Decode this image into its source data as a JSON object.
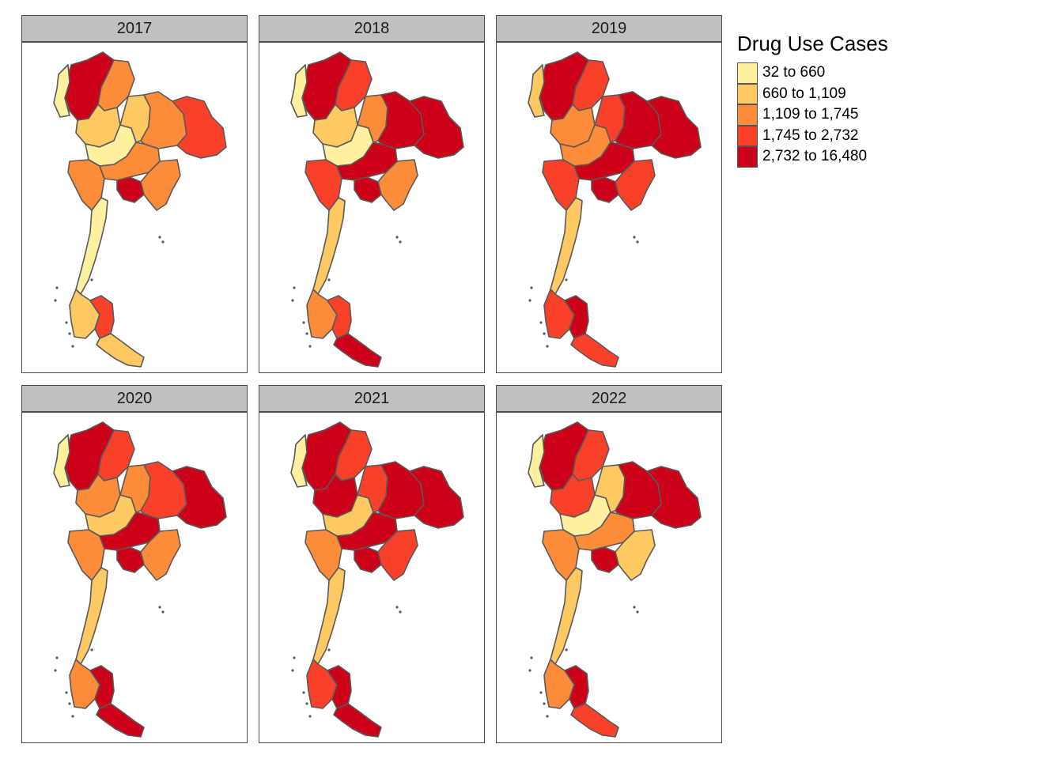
{
  "legend": {
    "title": "Drug Use Cases",
    "classes": [
      {
        "label": "32 to 660",
        "color": "#fff0a0"
      },
      {
        "label": "660 to 1,109",
        "color": "#fec863"
      },
      {
        "label": "1,109 to 1,745",
        "color": "#fd8c3a"
      },
      {
        "label": "1,745 to 2,732",
        "color": "#f9412a"
      },
      {
        "label": "2,732 to 16,480",
        "color": "#cc0019"
      }
    ]
  },
  "boundary_color": "#595959",
  "icons": {
    "map": "thailand-province-choropleth"
  },
  "panels": [
    {
      "year": "2017",
      "regions": {
        "north_west": 4,
        "north_west_edge": 0,
        "north_east_n": 2,
        "north_central": 1,
        "central_north": 0,
        "west": 2,
        "isan_west": 1,
        "isan_central": 2,
        "isan_east": 3,
        "central": 2,
        "bangkok": 4,
        "east": 2,
        "isthmus": 0,
        "south_upper": 1,
        "south_mid": 3,
        "south_lower": 1
      }
    },
    {
      "year": "2018",
      "regions": {
        "north_west": 4,
        "north_west_edge": 0,
        "north_east_n": 3,
        "north_central": 1,
        "central_north": 0,
        "west": 3,
        "isan_west": 2,
        "isan_central": 4,
        "isan_east": 4,
        "central": 4,
        "bangkok": 4,
        "east": 2,
        "isthmus": 1,
        "south_upper": 2,
        "south_mid": 3,
        "south_lower": 4
      }
    },
    {
      "year": "2019",
      "regions": {
        "north_west": 4,
        "north_west_edge": 1,
        "north_east_n": 3,
        "north_central": 2,
        "central_north": 2,
        "west": 3,
        "isan_west": 3,
        "isan_central": 4,
        "isan_east": 4,
        "central": 4,
        "bangkok": 4,
        "east": 3,
        "isthmus": 1,
        "south_upper": 3,
        "south_mid": 4,
        "south_lower": 3
      }
    },
    {
      "year": "2020",
      "regions": {
        "north_west": 4,
        "north_west_edge": 0,
        "north_east_n": 3,
        "north_central": 2,
        "central_north": 1,
        "west": 2,
        "isan_west": 2,
        "isan_central": 3,
        "isan_east": 4,
        "central": 4,
        "bangkok": 4,
        "east": 2,
        "isthmus": 1,
        "south_upper": 2,
        "south_mid": 4,
        "south_lower": 4
      }
    },
    {
      "year": "2021",
      "regions": {
        "north_west": 4,
        "north_west_edge": 0,
        "north_east_n": 3,
        "north_central": 4,
        "central_north": 1,
        "west": 2,
        "isan_west": 3,
        "isan_central": 4,
        "isan_east": 4,
        "central": 4,
        "bangkok": 4,
        "east": 3,
        "isthmus": 1,
        "south_upper": 3,
        "south_mid": 4,
        "south_lower": 4
      }
    },
    {
      "year": "2022",
      "regions": {
        "north_west": 4,
        "north_west_edge": 0,
        "north_east_n": 3,
        "north_central": 3,
        "central_north": 0,
        "west": 2,
        "isan_west": 1,
        "isan_central": 4,
        "isan_east": 4,
        "central": 2,
        "bangkok": 4,
        "east": 1,
        "isthmus": 1,
        "south_upper": 2,
        "south_mid": 4,
        "south_lower": 3
      }
    }
  ]
}
